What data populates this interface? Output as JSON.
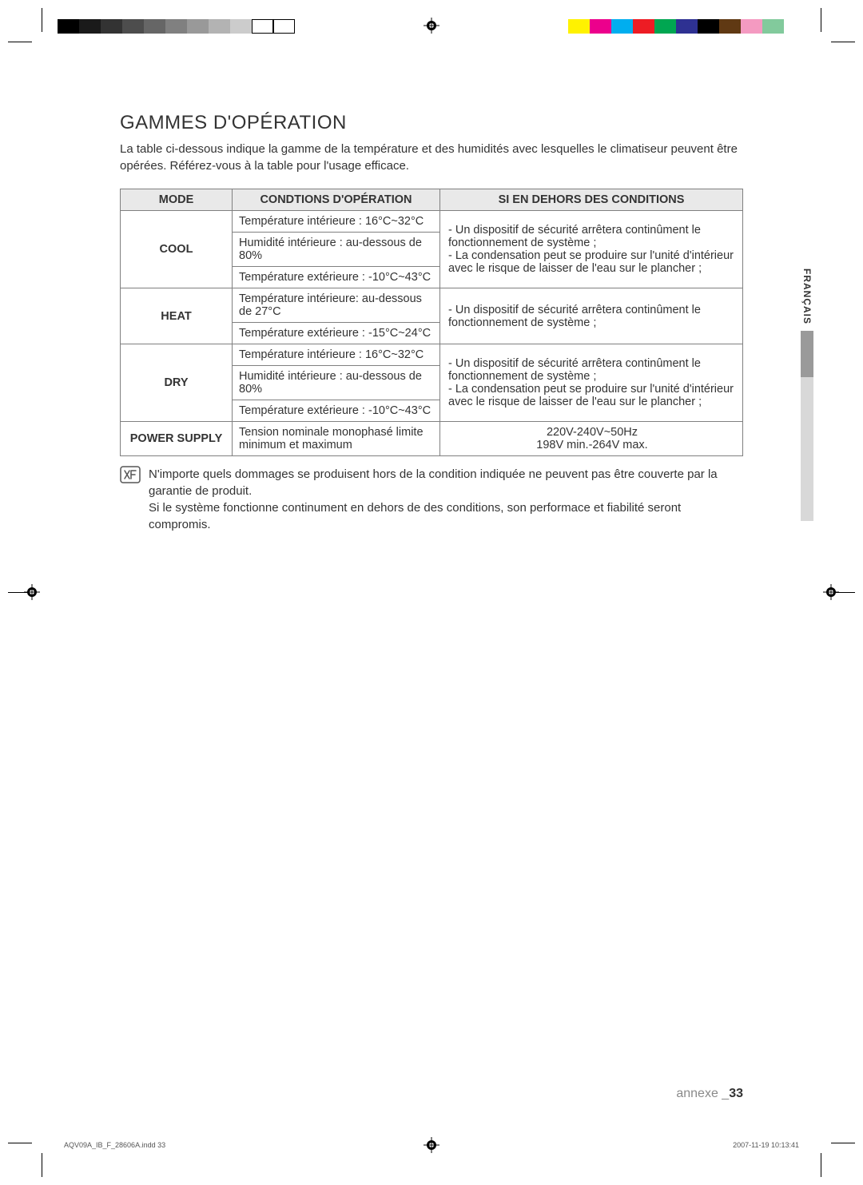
{
  "colorbars": {
    "left": [
      "#000000",
      "#1a1a1a",
      "#333333",
      "#4d4d4d",
      "#666666",
      "#808080",
      "#999999",
      "#b3b3b3",
      "#cccccc",
      "outline",
      "outline"
    ],
    "right": [
      "#fff200",
      "#ec008c",
      "#00aeef",
      "#ed1c24",
      "#00a651",
      "#2e3192",
      "#000000",
      "#603913",
      "#f49ac1",
      "#82ca9c",
      "#fff"
    ]
  },
  "heading": "GAMMES D'OPÉRATION",
  "intro": "La table ci-dessous indique la gamme de la température et des humidités avec lesquelles le climatiseur peuvent être opérées. Référez-vous à la table pour l'usage efficace.",
  "table": {
    "headers": {
      "mode": "MODE",
      "cond": "CONDTIONS D'OPÉRATION",
      "outside": "SI EN DEHORS DES CONDITIONS"
    },
    "sections": [
      {
        "mode": "COOL",
        "conds": [
          "Température intérieure : 16°C~32°C",
          "Humidité intérieure : au-dessous de 80%",
          "Température extérieure : -10°C~43°C"
        ],
        "outside": "- Un dispositif de sécurité arrêtera continûment le fonctionnement de système ;\n- La condensation peut se produire sur l'unité d'intérieur avec le risque de laisser de l'eau sur le plancher ;"
      },
      {
        "mode": "HEAT",
        "conds": [
          "Température intérieure: au-dessous de 27°C",
          "Température extérieure : -15°C~24°C"
        ],
        "outside": "- Un dispositif de sécurité arrêtera continûment le fonctionnement de système ;"
      },
      {
        "mode": "DRY",
        "conds": [
          "Température intérieure : 16°C~32°C",
          "Humidité intérieure : au-dessous de 80%",
          "Température extérieure : -10°C~43°C"
        ],
        "outside": "- Un dispositif de sécurité arrêtera continûment le fonctionnement de système ;\n- La condensation peut se produire sur l'unité d'intérieur avec le risque de laisser de l'eau sur le plancher ;"
      }
    ],
    "power": {
      "label": "POWER SUPPLY",
      "cond": "Tension nominale monophasé limite minimum et maximum",
      "values": [
        "220V-240V~50Hz",
        "198V min.-264V max."
      ]
    }
  },
  "note": "N'importe quels dommages se produisent hors de la condition indiquée ne peuvent pas être couverte par la garantie de produit.\nSi le système fonctionne continument en dehors de des conditions, son performace et fiabilité seront compromis.",
  "side_lang": "FRANÇAIS",
  "footer": {
    "section": "annexe _",
    "page": "33"
  },
  "print": {
    "file": "AQV09A_IB_F_28606A.indd   33",
    "stamp": "2007-11-19   10:13:41"
  }
}
